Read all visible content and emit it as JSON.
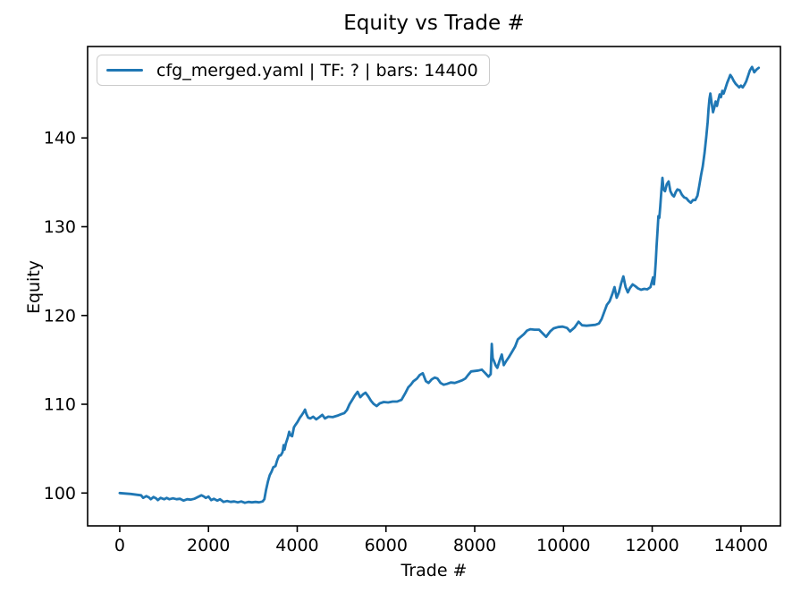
{
  "chart_data": {
    "type": "line",
    "title": "Equity vs Trade #",
    "xlabel": "Trade #",
    "ylabel": "Equity",
    "grid": false,
    "xlim": [
      -724,
      14890
    ],
    "ylim": [
      96.3,
      150.3
    ],
    "x_ticks": [
      0,
      2000,
      4000,
      6000,
      8000,
      10000,
      12000,
      14000
    ],
    "y_ticks": [
      100,
      110,
      120,
      130,
      140
    ],
    "axis_color": "#000000",
    "background": "#ffffff",
    "legend": {
      "position": "upper left",
      "entries": [
        {
          "label": "cfg_merged.yaml | TF: ? | bars: 14400",
          "color": "#1f77b4"
        }
      ]
    },
    "series": [
      {
        "name": "cfg_merged.yaml | TF: ? | bars: 14400",
        "color": "#1f77b4",
        "line_width": 2.8,
        "points": [
          [
            0,
            100.0
          ],
          [
            120,
            99.95
          ],
          [
            250,
            99.9
          ],
          [
            400,
            99.8
          ],
          [
            480,
            99.75
          ],
          [
            530,
            99.45
          ],
          [
            600,
            99.65
          ],
          [
            660,
            99.5
          ],
          [
            700,
            99.3
          ],
          [
            760,
            99.55
          ],
          [
            820,
            99.4
          ],
          [
            860,
            99.2
          ],
          [
            920,
            99.45
          ],
          [
            1000,
            99.3
          ],
          [
            1060,
            99.45
          ],
          [
            1120,
            99.3
          ],
          [
            1200,
            99.4
          ],
          [
            1280,
            99.3
          ],
          [
            1360,
            99.35
          ],
          [
            1440,
            99.15
          ],
          [
            1520,
            99.3
          ],
          [
            1600,
            99.25
          ],
          [
            1680,
            99.35
          ],
          [
            1760,
            99.55
          ],
          [
            1840,
            99.75
          ],
          [
            1900,
            99.6
          ],
          [
            1940,
            99.45
          ],
          [
            2000,
            99.6
          ],
          [
            2060,
            99.2
          ],
          [
            2120,
            99.35
          ],
          [
            2200,
            99.15
          ],
          [
            2260,
            99.3
          ],
          [
            2340,
            99.0
          ],
          [
            2420,
            99.1
          ],
          [
            2500,
            99.0
          ],
          [
            2580,
            99.05
          ],
          [
            2660,
            98.95
          ],
          [
            2740,
            99.05
          ],
          [
            2820,
            98.9
          ],
          [
            2900,
            99.0
          ],
          [
            2980,
            98.95
          ],
          [
            3060,
            99.0
          ],
          [
            3140,
            98.95
          ],
          [
            3220,
            99.05
          ],
          [
            3260,
            99.3
          ],
          [
            3300,
            100.4
          ],
          [
            3340,
            101.3
          ],
          [
            3380,
            102.0
          ],
          [
            3420,
            102.4
          ],
          [
            3460,
            102.9
          ],
          [
            3510,
            103.05
          ],
          [
            3550,
            103.7
          ],
          [
            3590,
            104.2
          ],
          [
            3630,
            104.25
          ],
          [
            3670,
            104.6
          ],
          [
            3695,
            105.4
          ],
          [
            3715,
            104.9
          ],
          [
            3745,
            105.6
          ],
          [
            3785,
            106.2
          ],
          [
            3820,
            106.9
          ],
          [
            3850,
            106.5
          ],
          [
            3885,
            106.4
          ],
          [
            3925,
            107.4
          ],
          [
            3965,
            107.7
          ],
          [
            4005,
            108.0
          ],
          [
            4060,
            108.5
          ],
          [
            4105,
            108.8
          ],
          [
            4145,
            109.1
          ],
          [
            4175,
            109.4
          ],
          [
            4205,
            108.9
          ],
          [
            4245,
            108.5
          ],
          [
            4295,
            108.4
          ],
          [
            4360,
            108.6
          ],
          [
            4430,
            108.3
          ],
          [
            4500,
            108.55
          ],
          [
            4565,
            108.8
          ],
          [
            4625,
            108.4
          ],
          [
            4700,
            108.6
          ],
          [
            4800,
            108.55
          ],
          [
            4900,
            108.7
          ],
          [
            5000,
            108.9
          ],
          [
            5060,
            109.0
          ],
          [
            5120,
            109.35
          ],
          [
            5180,
            110.0
          ],
          [
            5240,
            110.5
          ],
          [
            5300,
            111.0
          ],
          [
            5360,
            111.4
          ],
          [
            5420,
            110.8
          ],
          [
            5480,
            111.1
          ],
          [
            5540,
            111.3
          ],
          [
            5600,
            110.9
          ],
          [
            5660,
            110.4
          ],
          [
            5720,
            110.05
          ],
          [
            5790,
            109.8
          ],
          [
            5860,
            110.1
          ],
          [
            5950,
            110.25
          ],
          [
            6050,
            110.2
          ],
          [
            6150,
            110.3
          ],
          [
            6250,
            110.3
          ],
          [
            6350,
            110.5
          ],
          [
            6430,
            111.2
          ],
          [
            6500,
            111.9
          ],
          [
            6560,
            112.2
          ],
          [
            6620,
            112.6
          ],
          [
            6700,
            112.9
          ],
          [
            6760,
            113.3
          ],
          [
            6830,
            113.5
          ],
          [
            6900,
            112.6
          ],
          [
            6960,
            112.4
          ],
          [
            7030,
            112.8
          ],
          [
            7100,
            113.0
          ],
          [
            7160,
            112.9
          ],
          [
            7230,
            112.4
          ],
          [
            7300,
            112.2
          ],
          [
            7380,
            112.3
          ],
          [
            7460,
            112.45
          ],
          [
            7550,
            112.4
          ],
          [
            7640,
            112.55
          ],
          [
            7720,
            112.7
          ],
          [
            7790,
            112.9
          ],
          [
            7850,
            113.3
          ],
          [
            7920,
            113.7
          ],
          [
            8000,
            113.75
          ],
          [
            8080,
            113.8
          ],
          [
            8160,
            113.9
          ],
          [
            8240,
            113.5
          ],
          [
            8310,
            113.1
          ],
          [
            8360,
            113.4
          ],
          [
            8385,
            116.8
          ],
          [
            8405,
            115.2
          ],
          [
            8430,
            114.9
          ],
          [
            8470,
            114.4
          ],
          [
            8510,
            114.1
          ],
          [
            8560,
            114.9
          ],
          [
            8610,
            115.6
          ],
          [
            8655,
            114.4
          ],
          [
            8700,
            114.8
          ],
          [
            8770,
            115.3
          ],
          [
            8840,
            115.9
          ],
          [
            8910,
            116.5
          ],
          [
            8970,
            117.3
          ],
          [
            9040,
            117.6
          ],
          [
            9110,
            117.9
          ],
          [
            9180,
            118.3
          ],
          [
            9250,
            118.45
          ],
          [
            9350,
            118.4
          ],
          [
            9450,
            118.4
          ],
          [
            9550,
            117.9
          ],
          [
            9610,
            117.6
          ],
          [
            9700,
            118.2
          ],
          [
            9780,
            118.55
          ],
          [
            9880,
            118.7
          ],
          [
            9980,
            118.75
          ],
          [
            10080,
            118.6
          ],
          [
            10150,
            118.2
          ],
          [
            10250,
            118.65
          ],
          [
            10340,
            119.3
          ],
          [
            10420,
            118.9
          ],
          [
            10520,
            118.85
          ],
          [
            10620,
            118.9
          ],
          [
            10720,
            118.95
          ],
          [
            10800,
            119.1
          ],
          [
            10860,
            119.6
          ],
          [
            10920,
            120.4
          ],
          [
            10980,
            121.2
          ],
          [
            11040,
            121.6
          ],
          [
            11100,
            122.4
          ],
          [
            11150,
            123.2
          ],
          [
            11200,
            122.0
          ],
          [
            11250,
            122.6
          ],
          [
            11300,
            123.6
          ],
          [
            11350,
            124.4
          ],
          [
            11400,
            123.2
          ],
          [
            11450,
            122.6
          ],
          [
            11500,
            123.1
          ],
          [
            11560,
            123.5
          ],
          [
            11620,
            123.3
          ],
          [
            11680,
            123.05
          ],
          [
            11750,
            122.9
          ],
          [
            11820,
            123.0
          ],
          [
            11890,
            122.95
          ],
          [
            11960,
            123.2
          ],
          [
            12020,
            124.3
          ],
          [
            12040,
            123.5
          ],
          [
            12060,
            124.5
          ],
          [
            12080,
            126.0
          ],
          [
            12100,
            127.9
          ],
          [
            12120,
            129.5
          ],
          [
            12140,
            131.2
          ],
          [
            12160,
            131.0
          ],
          [
            12180,
            132.2
          ],
          [
            12210,
            134.3
          ],
          [
            12230,
            135.5
          ],
          [
            12255,
            134.2
          ],
          [
            12290,
            134.0
          ],
          [
            12330,
            134.8
          ],
          [
            12370,
            135.1
          ],
          [
            12410,
            134.0
          ],
          [
            12450,
            133.6
          ],
          [
            12490,
            133.4
          ],
          [
            12530,
            133.9
          ],
          [
            12570,
            134.2
          ],
          [
            12620,
            134.1
          ],
          [
            12670,
            133.6
          ],
          [
            12720,
            133.3
          ],
          [
            12770,
            133.2
          ],
          [
            12820,
            132.9
          ],
          [
            12870,
            132.7
          ],
          [
            12920,
            133.0
          ],
          [
            12970,
            133.0
          ],
          [
            13020,
            133.5
          ],
          [
            13060,
            134.6
          ],
          [
            13100,
            135.8
          ],
          [
            13140,
            136.8
          ],
          [
            13180,
            138.3
          ],
          [
            13220,
            140.2
          ],
          [
            13250,
            141.8
          ],
          [
            13270,
            143.3
          ],
          [
            13290,
            144.4
          ],
          [
            13310,
            145.0
          ],
          [
            13340,
            143.9
          ],
          [
            13370,
            142.9
          ],
          [
            13400,
            143.4
          ],
          [
            13430,
            144.1
          ],
          [
            13460,
            143.6
          ],
          [
            13490,
            144.3
          ],
          [
            13520,
            144.9
          ],
          [
            13550,
            144.6
          ],
          [
            13580,
            145.3
          ],
          [
            13610,
            145.0
          ],
          [
            13650,
            145.6
          ],
          [
            13690,
            146.2
          ],
          [
            13730,
            146.7
          ],
          [
            13760,
            147.1
          ],
          [
            13800,
            146.8
          ],
          [
            13840,
            146.4
          ],
          [
            13880,
            146.1
          ],
          [
            13920,
            145.9
          ],
          [
            13960,
            145.7
          ],
          [
            14000,
            145.9
          ],
          [
            14040,
            145.7
          ],
          [
            14080,
            146.0
          ],
          [
            14120,
            146.4
          ],
          [
            14160,
            147.0
          ],
          [
            14200,
            147.6
          ],
          [
            14250,
            148.0
          ],
          [
            14300,
            147.4
          ],
          [
            14350,
            147.7
          ],
          [
            14400,
            147.9
          ]
        ]
      }
    ]
  }
}
